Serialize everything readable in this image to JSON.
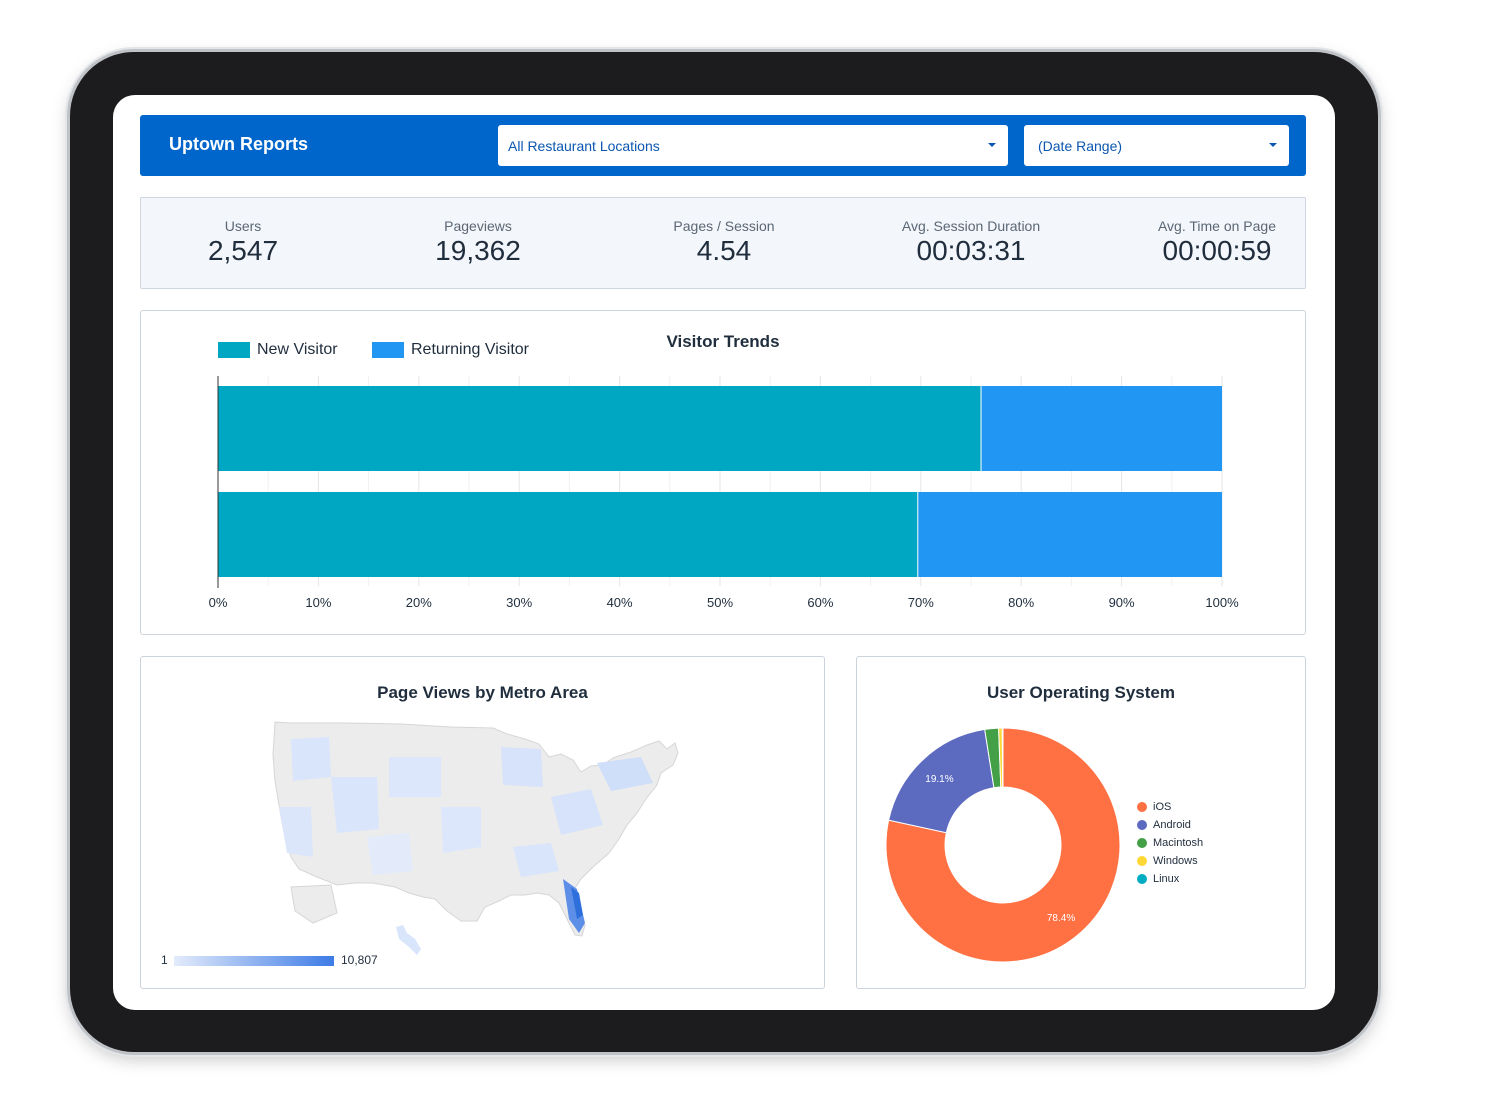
{
  "header": {
    "app_title": "Uptown Reports",
    "location_filter": "All Restaurant Locations",
    "date_filter": "(Date Range)"
  },
  "kpis": [
    {
      "label": "Users",
      "value": "2,547"
    },
    {
      "label": "Pageviews",
      "value": "19,362"
    },
    {
      "label": "Pages / Session",
      "value": "4.54"
    },
    {
      "label": "Avg. Session Duration",
      "value": "00:03:31"
    },
    {
      "label": "Avg. Time on Page",
      "value": "00:00:59"
    }
  ],
  "colors": {
    "brand": "#0066cc",
    "new_visitor": "#00a7c2",
    "returning_visitor": "#2196f3",
    "ios": "#ff7043",
    "android": "#5c6bc0",
    "macintosh": "#43a047",
    "windows": "#fdd835",
    "linux": "#00acc1"
  },
  "chart_data": [
    {
      "type": "bar",
      "orientation": "horizontal",
      "stacked": "percent",
      "title": "Visitor Trends",
      "legend": [
        "New Visitor",
        "Returning Visitor"
      ],
      "legend_position": "top-left",
      "x_ticks": [
        "0%",
        "10%",
        "20%",
        "30%",
        "40%",
        "50%",
        "60%",
        "70%",
        "80%",
        "90%",
        "100%"
      ],
      "xlim": [
        0,
        100
      ],
      "grid": true,
      "series": [
        {
          "name": "New Visitor",
          "values": [
            76,
            69.7
          ]
        },
        {
          "name": "Returning Visitor",
          "values": [
            24,
            30.3
          ]
        }
      ]
    },
    {
      "type": "heatmap",
      "title": "Page Views by Metro Area",
      "scale_min": "1",
      "scale_max": "10,807"
    },
    {
      "type": "pie",
      "donut": true,
      "title": "User Operating System",
      "legend_position": "right",
      "slices": [
        {
          "name": "iOS",
          "value": 78.4,
          "label": "78.4%"
        },
        {
          "name": "Android",
          "value": 19.1,
          "label": "19.1%"
        },
        {
          "name": "Macintosh",
          "value": 1.9,
          "label": ""
        },
        {
          "name": "Windows",
          "value": 0.5,
          "label": ""
        },
        {
          "name": "Linux",
          "value": 0.1,
          "label": ""
        }
      ]
    }
  ]
}
